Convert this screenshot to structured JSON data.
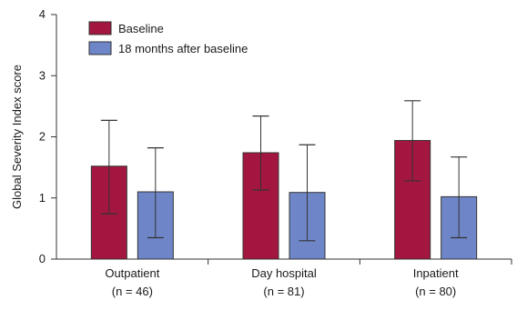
{
  "chart_data": {
    "type": "bar",
    "ylabel": "Global Severity Index score",
    "xlabel": "",
    "ylim": [
      0,
      4
    ],
    "yticks": [
      "0",
      "1",
      "2",
      "3",
      "4"
    ],
    "categories": [
      {
        "name": "Outpatient",
        "n": "(n = 46)"
      },
      {
        "name": "Day hospital",
        "n": "(n = 81)"
      },
      {
        "name": "Inpatient",
        "n": "(n = 80)"
      }
    ],
    "series": [
      {
        "name": "Baseline",
        "color": "#a3163f",
        "values": [
          1.52,
          1.74,
          1.94
        ],
        "error_upper": [
          2.27,
          2.34,
          2.59
        ],
        "error_lower": [
          0.74,
          1.13,
          1.28
        ]
      },
      {
        "name": "18 months after baseline",
        "color": "#6e86c8",
        "values": [
          1.1,
          1.09,
          1.02
        ],
        "error_upper": [
          1.82,
          1.87,
          1.67
        ],
        "error_lower": [
          0.35,
          0.3,
          0.35
        ]
      }
    ],
    "legend_position": "top-left",
    "grid": false
  }
}
